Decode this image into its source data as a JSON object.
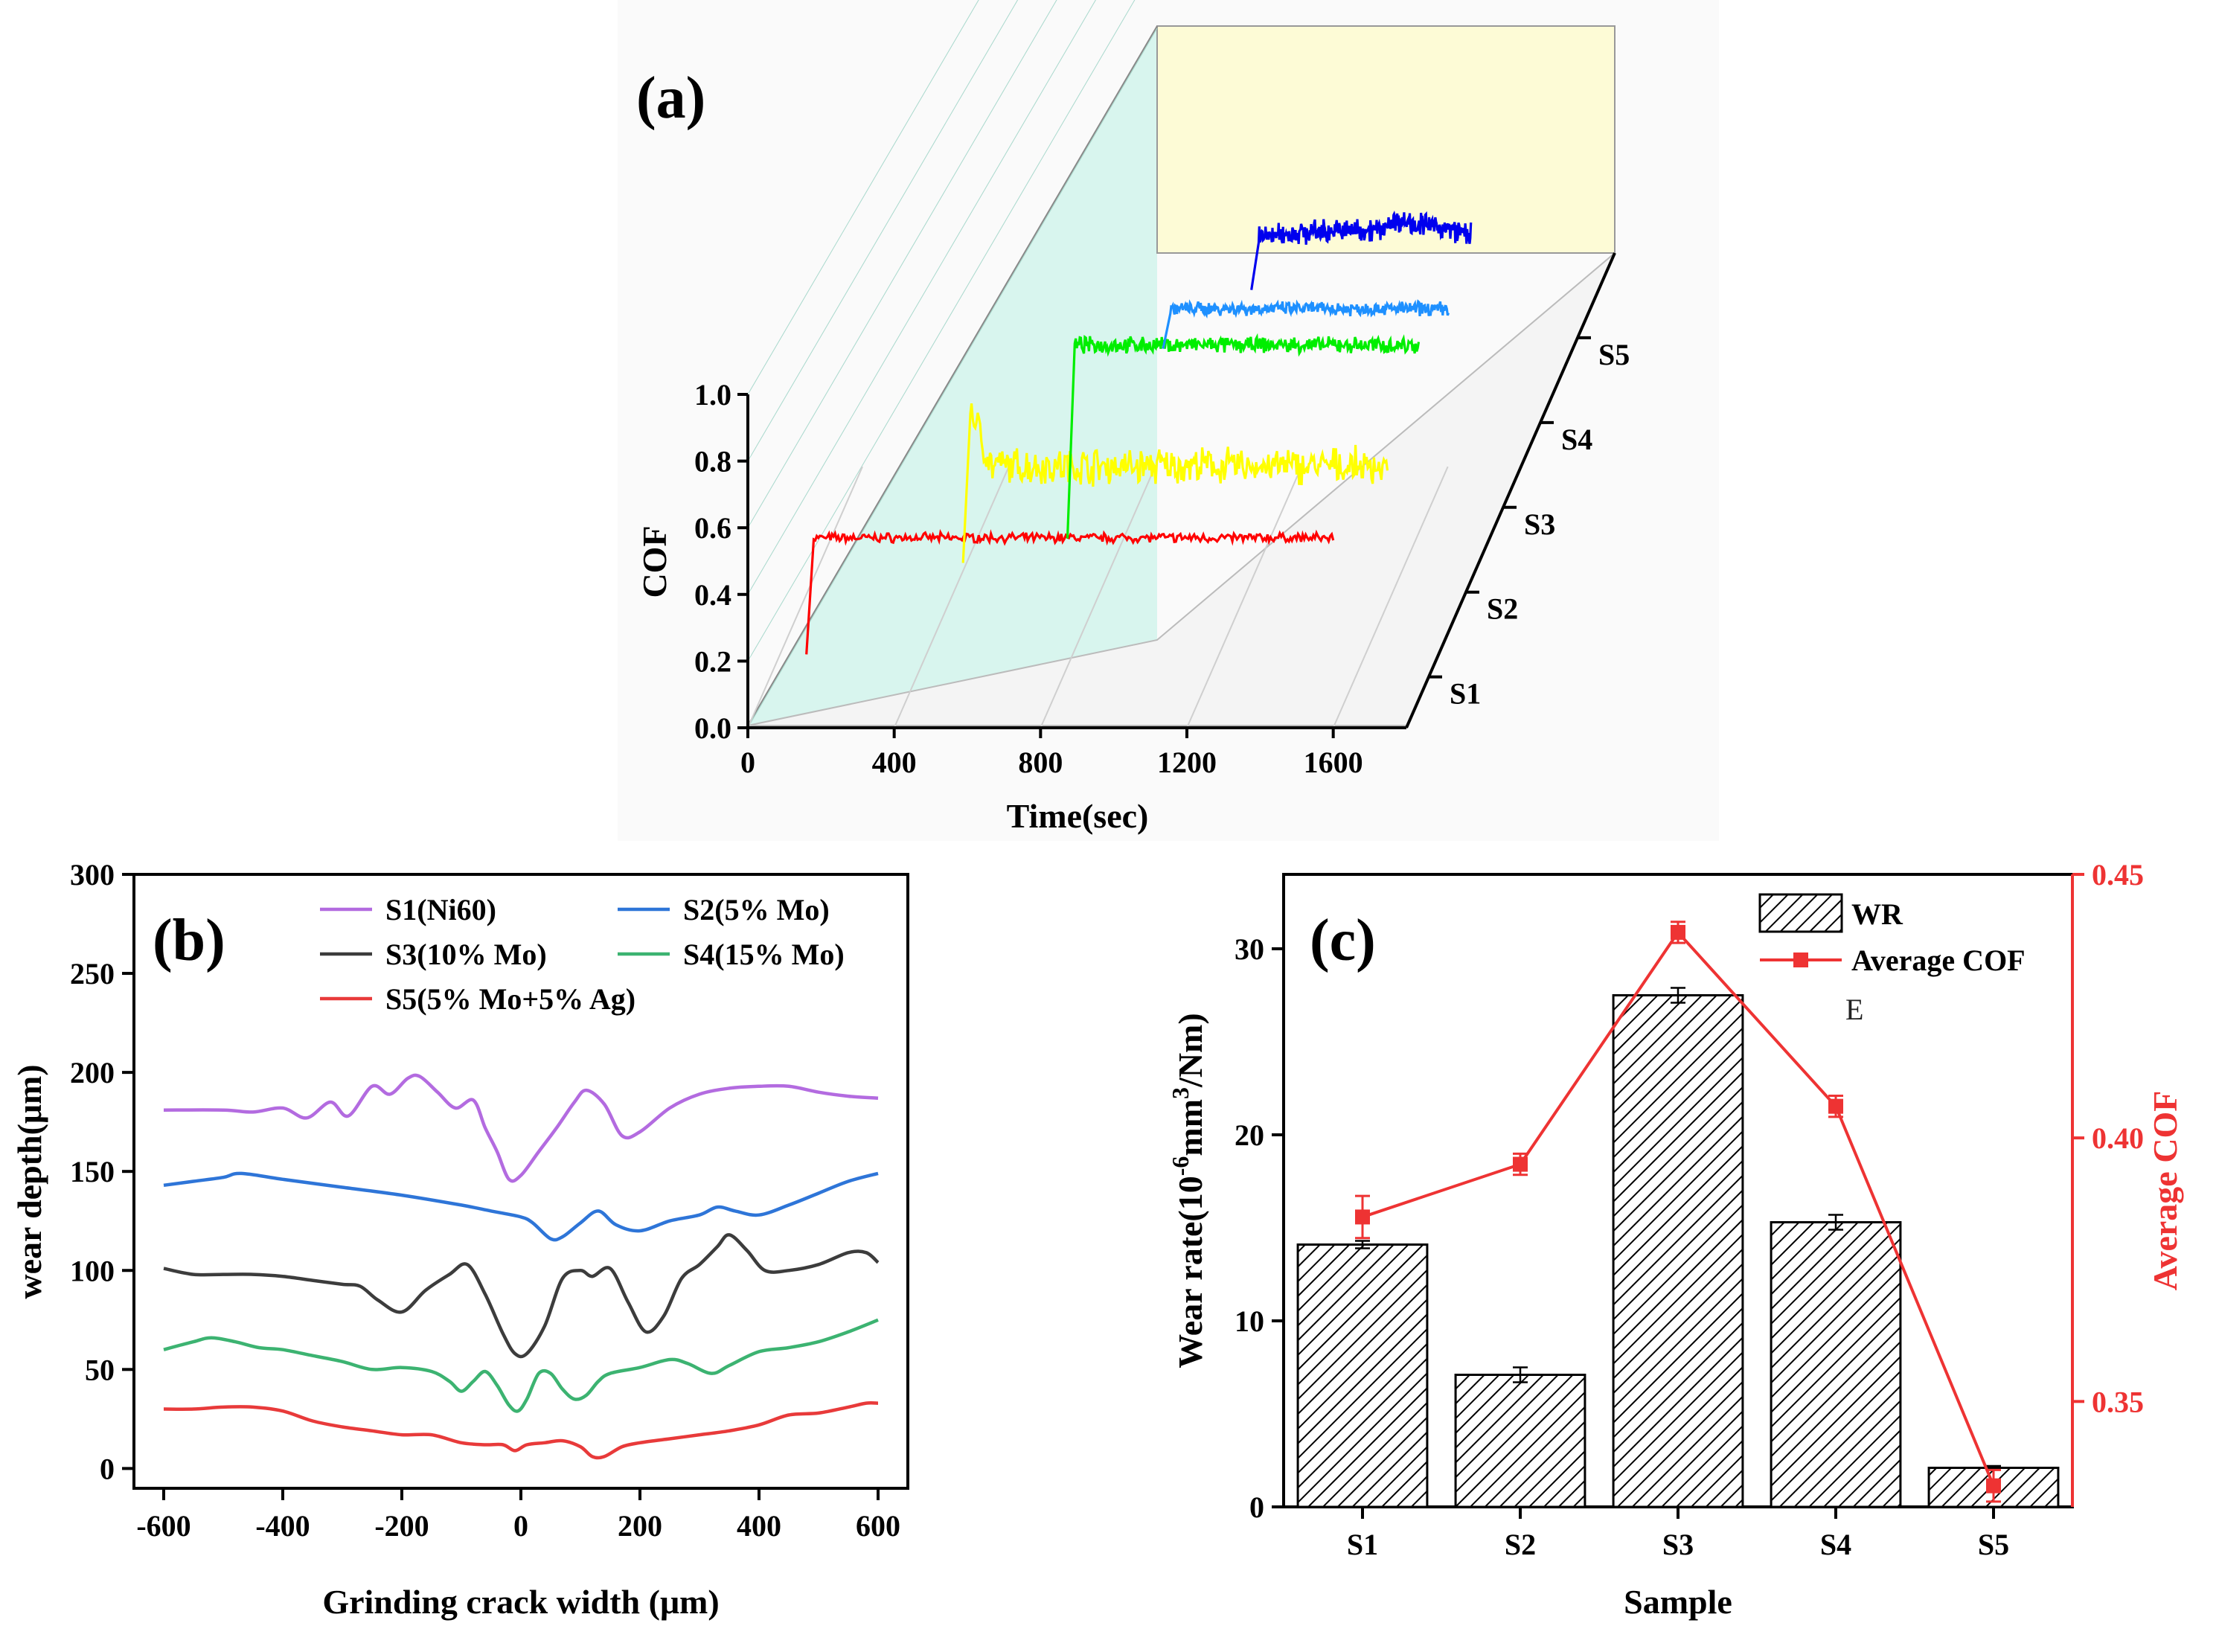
{
  "chart_data": [
    {
      "panel": "(a)",
      "type": "line",
      "xlabel": "Time(sec)",
      "ylabel": "COF",
      "xticks": [
        "0",
        "400",
        "800",
        "1200",
        "1600"
      ],
      "yticks": [
        "0.0",
        "0.2",
        "0.4",
        "0.6",
        "0.8",
        "1.0"
      ],
      "xlim": [
        0,
        1800
      ],
      "ylim": [
        0,
        1.0
      ],
      "depth_labels": [
        "S1",
        "S2",
        "S3",
        "S4",
        "S5"
      ],
      "series": [
        {
          "name": "S1",
          "color": "#ff0000",
          "start": 0.22,
          "mean": 0.57,
          "noise": 0.02,
          "run_in": 0
        },
        {
          "name": "S2",
          "color": "#ffff00",
          "start": 0.45,
          "mean": 0.74,
          "noise": 0.08,
          "run_in": 0.92
        },
        {
          "name": "S3",
          "color": "#00ee00",
          "start": 0.3,
          "mean": 0.88,
          "noise": 0.035,
          "run_in": 0
        },
        {
          "name": "S4",
          "color": "#1e90ff",
          "start": 0.78,
          "mean": 0.9,
          "noise": 0.03,
          "run_in": 0
        },
        {
          "name": "S5",
          "color": "#0000ee",
          "start": 0.8,
          "mean": 0.96,
          "noise": 0.05,
          "run_in": 0
        }
      ]
    },
    {
      "panel": "(b)",
      "type": "line",
      "xlabel": "Grinding crack width (μm)",
      "ylabel": "wear depth(μm)",
      "xticks": [
        "-600",
        "-400",
        "-200",
        "0",
        "200",
        "400",
        "600"
      ],
      "yticks": [
        "0",
        "50",
        "100",
        "150",
        "200",
        "250",
        "300"
      ],
      "xlim": [
        -650,
        650
      ],
      "ylim": [
        -10,
        300
      ],
      "legend": [
        "S1(Ni60)",
        "S2(5% Mo)",
        "S3(10% Mo)",
        "S4(15% Mo)",
        "S5(5% Mo+5% Ag)"
      ],
      "series": [
        {
          "name": "S1(Ni60)",
          "color": "#b36be0",
          "x": [
            -600,
            -500,
            -450,
            -400,
            -360,
            -320,
            -290,
            -250,
            -220,
            -190,
            -170,
            -140,
            -110,
            -80,
            -60,
            -40,
            -20,
            0,
            30,
            60,
            90,
            110,
            140,
            170,
            200,
            250,
            300,
            350,
            400,
            450,
            500,
            550,
            600
          ],
          "y": [
            181,
            181,
            180,
            182,
            177,
            185,
            178,
            193,
            189,
            197,
            198,
            190,
            182,
            186,
            172,
            160,
            146,
            148,
            160,
            172,
            185,
            191,
            184,
            168,
            170,
            182,
            189,
            192,
            193,
            193,
            190,
            188,
            187
          ]
        },
        {
          "name": "S2(5% Mo)",
          "color": "#2e75d8",
          "x": [
            -600,
            -550,
            -500,
            -470,
            -400,
            -300,
            -200,
            -100,
            -50,
            0,
            20,
            50,
            70,
            100,
            130,
            160,
            200,
            250,
            300,
            330,
            360,
            400,
            450,
            500,
            550,
            600
          ],
          "y": [
            143,
            145,
            147,
            149,
            146,
            142,
            138,
            133,
            130,
            127,
            124,
            116,
            117,
            124,
            130,
            123,
            120,
            125,
            128,
            132,
            130,
            128,
            133,
            139,
            145,
            149
          ]
        },
        {
          "name": "S3(10% Mo)",
          "color": "#3c3c3c",
          "x": [
            -600,
            -550,
            -500,
            -450,
            -400,
            -350,
            -300,
            -270,
            -240,
            -200,
            -160,
            -120,
            -90,
            -60,
            -30,
            -10,
            10,
            40,
            70,
            100,
            120,
            150,
            180,
            210,
            240,
            270,
            300,
            330,
            350,
            380,
            410,
            450,
            500,
            550,
            580,
            600
          ],
          "y": [
            101,
            98,
            98,
            98,
            97,
            95,
            93,
            92,
            85,
            79,
            90,
            98,
            103,
            88,
            68,
            58,
            58,
            72,
            96,
            100,
            97,
            101,
            84,
            69,
            77,
            96,
            103,
            112,
            118,
            110,
            100,
            100,
            103,
            109,
            109,
            104
          ]
        },
        {
          "name": "S4(15% Mo)",
          "color": "#3cb371",
          "x": [
            -600,
            -550,
            -520,
            -480,
            -440,
            -400,
            -350,
            -300,
            -250,
            -200,
            -150,
            -120,
            -100,
            -80,
            -60,
            -40,
            -20,
            -5,
            10,
            30,
            50,
            70,
            90,
            110,
            130,
            150,
            200,
            250,
            280,
            320,
            350,
            400,
            450,
            500,
            550,
            600
          ],
          "y": [
            60,
            64,
            66,
            64,
            61,
            60,
            57,
            54,
            50,
            51,
            49,
            44,
            39,
            44,
            49,
            42,
            32,
            29,
            35,
            48,
            48,
            40,
            35,
            37,
            44,
            48,
            51,
            55,
            53,
            48,
            52,
            59,
            61,
            64,
            69,
            75
          ]
        },
        {
          "name": "S5(5% Mo+5% Ag)",
          "color": "#e83a3a",
          "x": [
            -600,
            -550,
            -500,
            -450,
            -400,
            -350,
            -300,
            -250,
            -200,
            -150,
            -100,
            -60,
            -30,
            -10,
            10,
            40,
            70,
            100,
            120,
            140,
            170,
            200,
            250,
            300,
            350,
            400,
            450,
            500,
            550,
            580,
            600
          ],
          "y": [
            30,
            30,
            31,
            31,
            29,
            24,
            21,
            19,
            17,
            17,
            13,
            12,
            12,
            9,
            12,
            13,
            14,
            11,
            6,
            6,
            11,
            13,
            15,
            17,
            19,
            22,
            27,
            28,
            31,
            33,
            33
          ]
        }
      ]
    },
    {
      "panel": "(c)",
      "type": "bar",
      "xlabel": "Sample",
      "ylabel": "Wear rate(10",
      "ylabel_exp": "-6",
      "ylabel_unit": "mm",
      "ylabel_exp2": "3",
      "ylabel_tail": "/Nm)",
      "ylabel_right": "Average COF",
      "categories": [
        "S1",
        "S2",
        "S3",
        "S4",
        "S5"
      ],
      "yticks": [
        "0",
        "10",
        "20",
        "30"
      ],
      "yticks_right": [
        "0.35",
        "0.40",
        "0.45"
      ],
      "ylim": [
        0,
        34
      ],
      "ylim_right": [
        0.33,
        0.45
      ],
      "extra_text": "E",
      "series": [
        {
          "name": "WR",
          "values": [
            14.1,
            7.1,
            27.5,
            15.3,
            2.1
          ],
          "errors": [
            0.2,
            0.4,
            0.4,
            0.4,
            0.1
          ],
          "pattern": "hatched"
        },
        {
          "name": "Average COF",
          "axis": "right",
          "color": "#ee3333",
          "values": [
            0.385,
            0.395,
            0.439,
            0.406,
            0.334
          ],
          "errors": [
            0.004,
            0.002,
            0.002,
            0.002,
            0.003
          ]
        }
      ]
    }
  ]
}
